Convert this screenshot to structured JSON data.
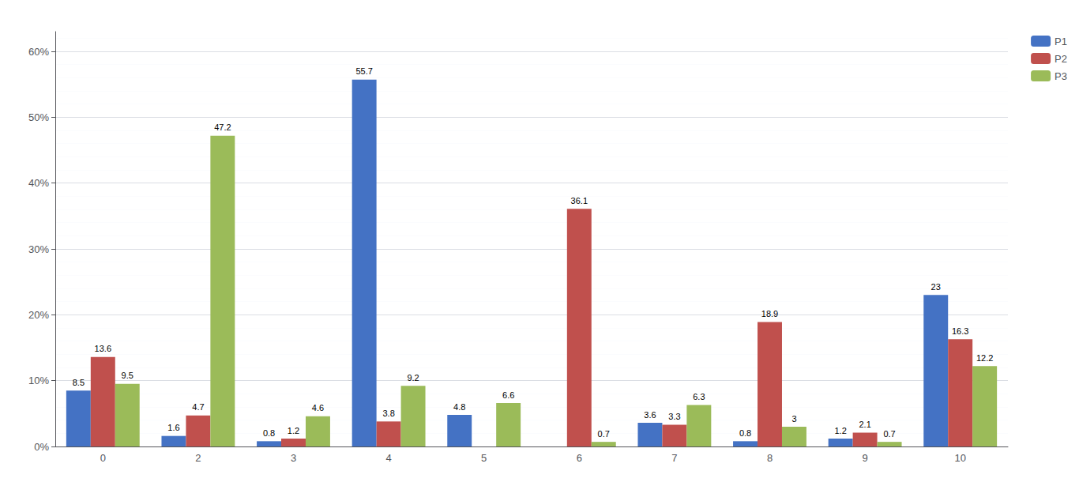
{
  "chart_data": {
    "type": "bar",
    "categories": [
      "0",
      "2",
      "3",
      "4",
      "5",
      "6",
      "7",
      "8",
      "9",
      "10"
    ],
    "series": [
      {
        "name": "P1",
        "color": "#4472C4",
        "values": [
          8.5,
          1.6,
          0.8,
          55.7,
          4.8,
          0.0,
          3.6,
          0.8,
          1.2,
          23.0
        ],
        "value_labels": [
          "8.5",
          "1.6",
          "0.8",
          "55.7",
          "4.8",
          null,
          "3.6",
          "0.8",
          "1.2",
          "23"
        ]
      },
      {
        "name": "P2",
        "color": "#C0504D",
        "values": [
          13.6,
          4.7,
          1.2,
          3.8,
          0.0,
          36.1,
          3.3,
          18.9,
          2.1,
          16.3
        ],
        "value_labels": [
          "13.6",
          "4.7",
          "1.2",
          "3.8",
          null,
          "36.1",
          "3.3",
          "18.9",
          "2.1",
          "16.3"
        ]
      },
      {
        "name": "P3",
        "color": "#9BBB59",
        "values": [
          9.5,
          47.2,
          4.6,
          9.2,
          6.6,
          0.7,
          6.3,
          3.0,
          0.7,
          12.2
        ],
        "value_labels": [
          "9.5",
          "47.2",
          "4.6",
          "9.2",
          "6.6",
          "0.7",
          "6.3",
          "3",
          "0.7",
          "12.2"
        ]
      }
    ],
    "ylim": [
      0,
      63
    ],
    "yticks": [
      {
        "value": 0,
        "label": "0%"
      },
      {
        "value": 10,
        "label": "10%"
      },
      {
        "value": 20,
        "label": "20%"
      },
      {
        "value": 30,
        "label": "30%"
      },
      {
        "value": 40,
        "label": "40%"
      },
      {
        "value": 50,
        "label": "50%"
      },
      {
        "value": 60,
        "label": "60%"
      }
    ],
    "grid": true,
    "legend": "right",
    "data_labels": true
  }
}
